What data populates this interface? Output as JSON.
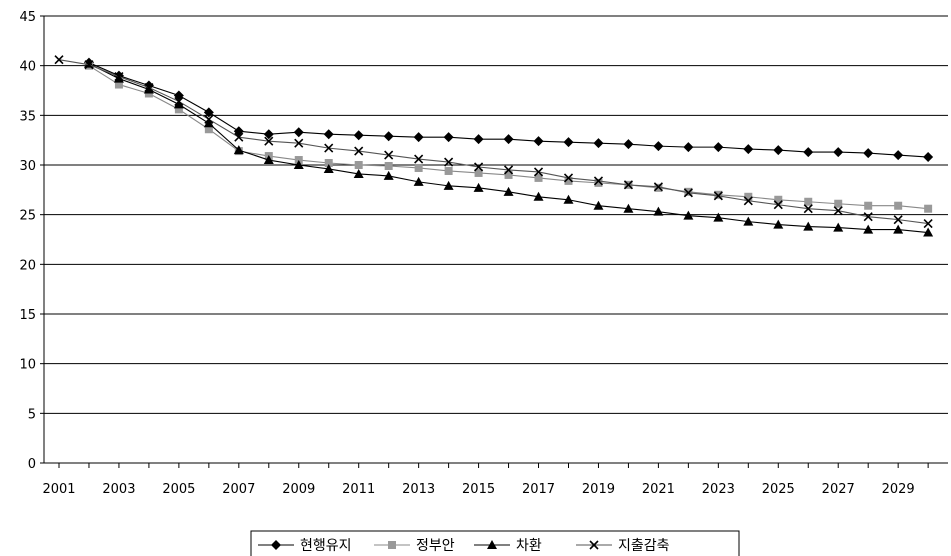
{
  "chart_data": {
    "type": "line",
    "title": "",
    "xlabel": "",
    "ylabel": "",
    "ylim": [
      0,
      45
    ],
    "yticks": [
      0,
      5,
      10,
      15,
      20,
      25,
      30,
      35,
      40,
      45
    ],
    "xlim": [
      2001,
      2030
    ],
    "xtick_labels": [
      "2001",
      "2003",
      "2005",
      "2007",
      "2009",
      "2011",
      "2013",
      "2015",
      "2017",
      "2019",
      "2021",
      "2023",
      "2025",
      "2027",
      "2029"
    ],
    "grid": "horizontal",
    "legend_position": "bottom-center",
    "x": [
      2001,
      2002,
      2003,
      2004,
      2005,
      2006,
      2007,
      2008,
      2009,
      2010,
      2011,
      2012,
      2013,
      2014,
      2015,
      2016,
      2017,
      2018,
      2019,
      2020,
      2021,
      2022,
      2023,
      2024,
      2025,
      2026,
      2027,
      2028,
      2029,
      2030
    ],
    "series": [
      {
        "name": "현행유지",
        "marker": "diamond",
        "color": "#000000",
        "values": [
          null,
          40.3,
          39.0,
          38.0,
          37.0,
          35.3,
          33.4,
          33.1,
          33.3,
          33.1,
          33.0,
          32.9,
          32.8,
          32.8,
          32.6,
          32.6,
          32.4,
          32.3,
          32.2,
          32.1,
          31.9,
          31.8,
          31.8,
          31.6,
          31.5,
          31.3,
          31.3,
          31.2,
          31.0,
          30.8
        ]
      },
      {
        "name": "정부안",
        "marker": "square",
        "color": "#999999",
        "values": [
          null,
          40.0,
          38.1,
          37.2,
          35.6,
          33.6,
          31.4,
          30.9,
          30.5,
          30.2,
          30.0,
          29.9,
          29.7,
          29.4,
          29.2,
          29.0,
          28.7,
          28.4,
          28.2,
          28.0,
          27.7,
          27.3,
          27.0,
          26.8,
          26.5,
          26.3,
          26.1,
          25.9,
          25.9,
          25.6
        ]
      },
      {
        "name": "차환",
        "marker": "triangle",
        "color": "#000000",
        "values": [
          null,
          40.2,
          38.7,
          37.6,
          36.1,
          34.2,
          31.5,
          30.5,
          30.0,
          29.6,
          29.1,
          28.9,
          28.3,
          27.9,
          27.7,
          27.3,
          26.8,
          26.5,
          25.9,
          25.6,
          25.3,
          24.9,
          24.7,
          24.3,
          24.0,
          23.8,
          23.7,
          23.5,
          23.5,
          23.2
        ]
      },
      {
        "name": "지출감축",
        "marker": "x",
        "color": "#000000",
        "values": [
          40.6,
          40.1,
          38.9,
          37.8,
          36.4,
          34.6,
          32.8,
          32.4,
          32.2,
          31.7,
          31.4,
          31.0,
          30.6,
          30.3,
          29.8,
          29.5,
          29.3,
          28.7,
          28.4,
          28.0,
          27.8,
          27.2,
          26.9,
          26.4,
          26.0,
          25.6,
          25.4,
          24.8,
          24.5,
          24.1
        ]
      }
    ]
  }
}
